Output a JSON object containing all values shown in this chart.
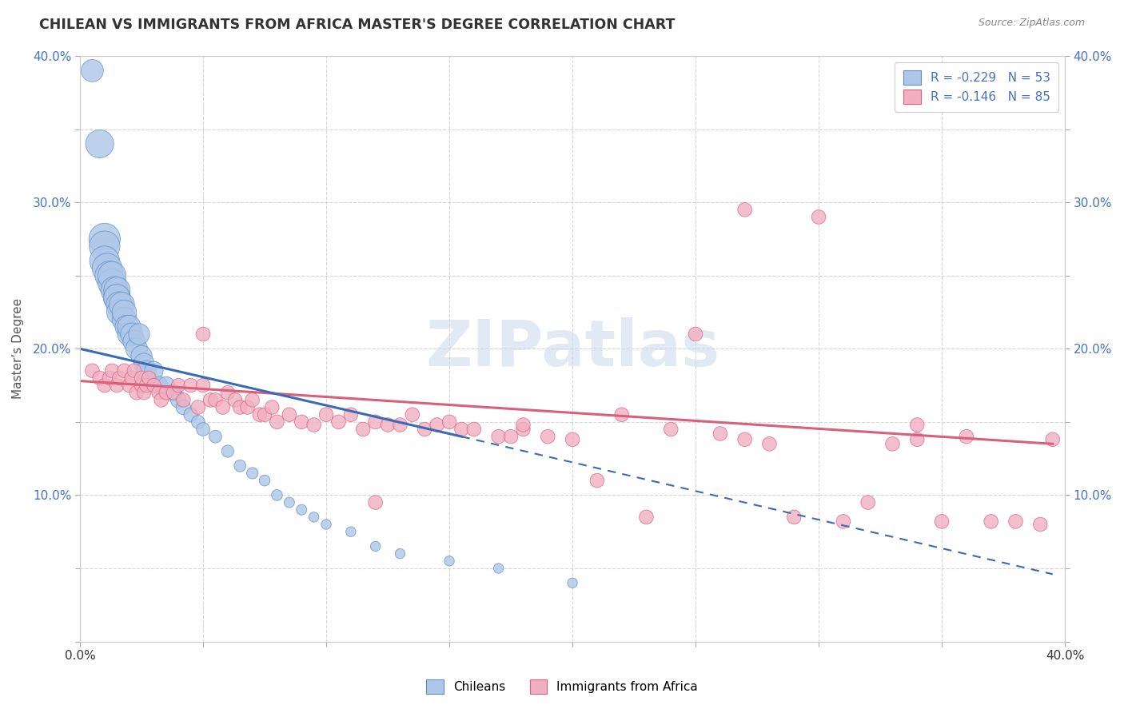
{
  "title": "CHILEAN VS IMMIGRANTS FROM AFRICA MASTER'S DEGREE CORRELATION CHART",
  "source_text": "Source: ZipAtlas.com",
  "ylabel": "Master’s Degree",
  "x_min": 0.0,
  "x_max": 0.4,
  "y_min": 0.0,
  "y_max": 0.4,
  "chilean_color": "#aec6e8",
  "chilean_edge_color": "#5b8ec4",
  "immigrant_color": "#f2afc0",
  "immigrant_edge_color": "#d96080",
  "trend_chilean_color": "#3a6bb5",
  "trend_immigrant_color": "#d9607a",
  "R_chilean": -0.229,
  "N_chilean": 53,
  "R_immigrant": -0.146,
  "N_immigrant": 85,
  "watermark": "ZIPatlas",
  "chilean_scatter_x": [
    0.005,
    0.008,
    0.01,
    0.01,
    0.01,
    0.011,
    0.012,
    0.013,
    0.013,
    0.014,
    0.015,
    0.015,
    0.015,
    0.016,
    0.016,
    0.017,
    0.018,
    0.018,
    0.019,
    0.02,
    0.02,
    0.021,
    0.022,
    0.023,
    0.024,
    0.025,
    0.026,
    0.027,
    0.03,
    0.032,
    0.035,
    0.038,
    0.04,
    0.042,
    0.045,
    0.048,
    0.05,
    0.055,
    0.06,
    0.065,
    0.07,
    0.075,
    0.08,
    0.085,
    0.09,
    0.095,
    0.1,
    0.11,
    0.12,
    0.13,
    0.15,
    0.17,
    0.2
  ],
  "chilean_scatter_y": [
    0.39,
    0.34,
    0.275,
    0.27,
    0.26,
    0.255,
    0.25,
    0.245,
    0.25,
    0.24,
    0.235,
    0.24,
    0.235,
    0.23,
    0.225,
    0.23,
    0.22,
    0.225,
    0.215,
    0.21,
    0.215,
    0.21,
    0.205,
    0.2,
    0.21,
    0.195,
    0.19,
    0.185,
    0.185,
    0.175,
    0.175,
    0.17,
    0.165,
    0.16,
    0.155,
    0.15,
    0.145,
    0.14,
    0.13,
    0.12,
    0.115,
    0.11,
    0.1,
    0.095,
    0.09,
    0.085,
    0.08,
    0.075,
    0.065,
    0.06,
    0.055,
    0.05,
    0.04
  ],
  "chilean_scatter_size": [
    50,
    80,
    100,
    95,
    90,
    90,
    85,
    80,
    80,
    75,
    75,
    70,
    70,
    70,
    65,
    65,
    60,
    60,
    55,
    55,
    55,
    50,
    50,
    48,
    45,
    45,
    42,
    40,
    35,
    32,
    30,
    28,
    25,
    22,
    20,
    18,
    18,
    16,
    15,
    14,
    13,
    12,
    12,
    11,
    11,
    10,
    10,
    10,
    10,
    10,
    10,
    10,
    10
  ],
  "immigrant_scatter_x": [
    0.005,
    0.008,
    0.01,
    0.012,
    0.013,
    0.015,
    0.016,
    0.018,
    0.02,
    0.021,
    0.022,
    0.023,
    0.025,
    0.025,
    0.026,
    0.027,
    0.028,
    0.03,
    0.032,
    0.033,
    0.035,
    0.038,
    0.04,
    0.042,
    0.045,
    0.048,
    0.05,
    0.053,
    0.055,
    0.058,
    0.06,
    0.063,
    0.065,
    0.068,
    0.07,
    0.073,
    0.075,
    0.078,
    0.08,
    0.085,
    0.09,
    0.095,
    0.1,
    0.105,
    0.11,
    0.115,
    0.12,
    0.125,
    0.13,
    0.135,
    0.14,
    0.145,
    0.15,
    0.155,
    0.16,
    0.17,
    0.175,
    0.18,
    0.19,
    0.2,
    0.21,
    0.22,
    0.23,
    0.24,
    0.25,
    0.26,
    0.27,
    0.28,
    0.29,
    0.3,
    0.31,
    0.32,
    0.33,
    0.34,
    0.35,
    0.36,
    0.37,
    0.38,
    0.39,
    0.395,
    0.05,
    0.12,
    0.18,
    0.27,
    0.34
  ],
  "immigrant_scatter_y": [
    0.185,
    0.18,
    0.175,
    0.18,
    0.185,
    0.175,
    0.18,
    0.185,
    0.175,
    0.18,
    0.185,
    0.17,
    0.175,
    0.18,
    0.17,
    0.175,
    0.18,
    0.175,
    0.17,
    0.165,
    0.17,
    0.17,
    0.175,
    0.165,
    0.175,
    0.16,
    0.175,
    0.165,
    0.165,
    0.16,
    0.17,
    0.165,
    0.16,
    0.16,
    0.165,
    0.155,
    0.155,
    0.16,
    0.15,
    0.155,
    0.15,
    0.148,
    0.155,
    0.15,
    0.155,
    0.145,
    0.15,
    0.148,
    0.148,
    0.155,
    0.145,
    0.148,
    0.15,
    0.145,
    0.145,
    0.14,
    0.14,
    0.145,
    0.14,
    0.138,
    0.11,
    0.155,
    0.085,
    0.145,
    0.21,
    0.142,
    0.138,
    0.135,
    0.085,
    0.29,
    0.082,
    0.095,
    0.135,
    0.148,
    0.082,
    0.14,
    0.082,
    0.082,
    0.08,
    0.138,
    0.21,
    0.095,
    0.148,
    0.295,
    0.138
  ],
  "immigrant_scatter_size": [
    20,
    20,
    20,
    20,
    20,
    20,
    20,
    20,
    20,
    20,
    20,
    20,
    20,
    20,
    20,
    20,
    20,
    20,
    20,
    20,
    20,
    20,
    20,
    20,
    20,
    20,
    20,
    20,
    20,
    20,
    20,
    20,
    20,
    20,
    20,
    20,
    20,
    20,
    20,
    20,
    20,
    20,
    20,
    20,
    20,
    20,
    20,
    20,
    20,
    20,
    20,
    20,
    20,
    20,
    20,
    20,
    20,
    20,
    20,
    20,
    20,
    20,
    20,
    20,
    20,
    20,
    20,
    20,
    20,
    20,
    20,
    20,
    20,
    20,
    20,
    20,
    20,
    20,
    20,
    20,
    20,
    20,
    20,
    20,
    20
  ],
  "trend_c_x0": 0.0,
  "trend_c_y0": 0.2,
  "trend_c_x1": 0.155,
  "trend_c_y1": 0.14,
  "trend_c_dash_x1": 0.395,
  "trend_c_dash_y1": 0.046,
  "trend_i_x0": 0.0,
  "trend_i_y0": 0.178,
  "trend_i_x1": 0.395,
  "trend_i_y1": 0.135
}
